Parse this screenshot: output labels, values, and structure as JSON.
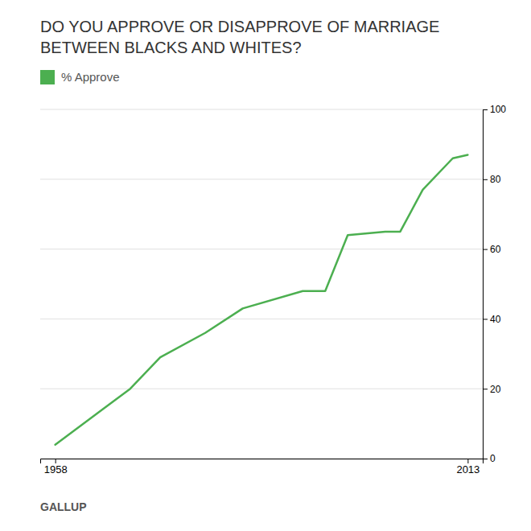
{
  "chart_data": {
    "type": "line",
    "title": "DO YOU APPROVE OR DISAPPROVE OF MARRIAGE BETWEEN BLACKS AND WHITES?",
    "source": "GALLUP",
    "x": [
      1958,
      1968,
      1972,
      1978,
      1983,
      1991,
      1994,
      1997,
      2002,
      2004,
      2007,
      2011,
      2013
    ],
    "series": [
      {
        "name": "% Approve",
        "color": "#4caf50",
        "values": [
          4,
          20,
          29,
          36,
          43,
          48,
          48,
          64,
          65,
          65,
          77,
          86,
          87
        ]
      }
    ],
    "xlim": [
      1956,
      2015
    ],
    "xticks": [
      1958,
      2013
    ],
    "ylim": [
      0,
      100
    ],
    "yticks": [
      0,
      20,
      40,
      60,
      80,
      100
    ],
    "grid": true,
    "legend": "top-left"
  }
}
